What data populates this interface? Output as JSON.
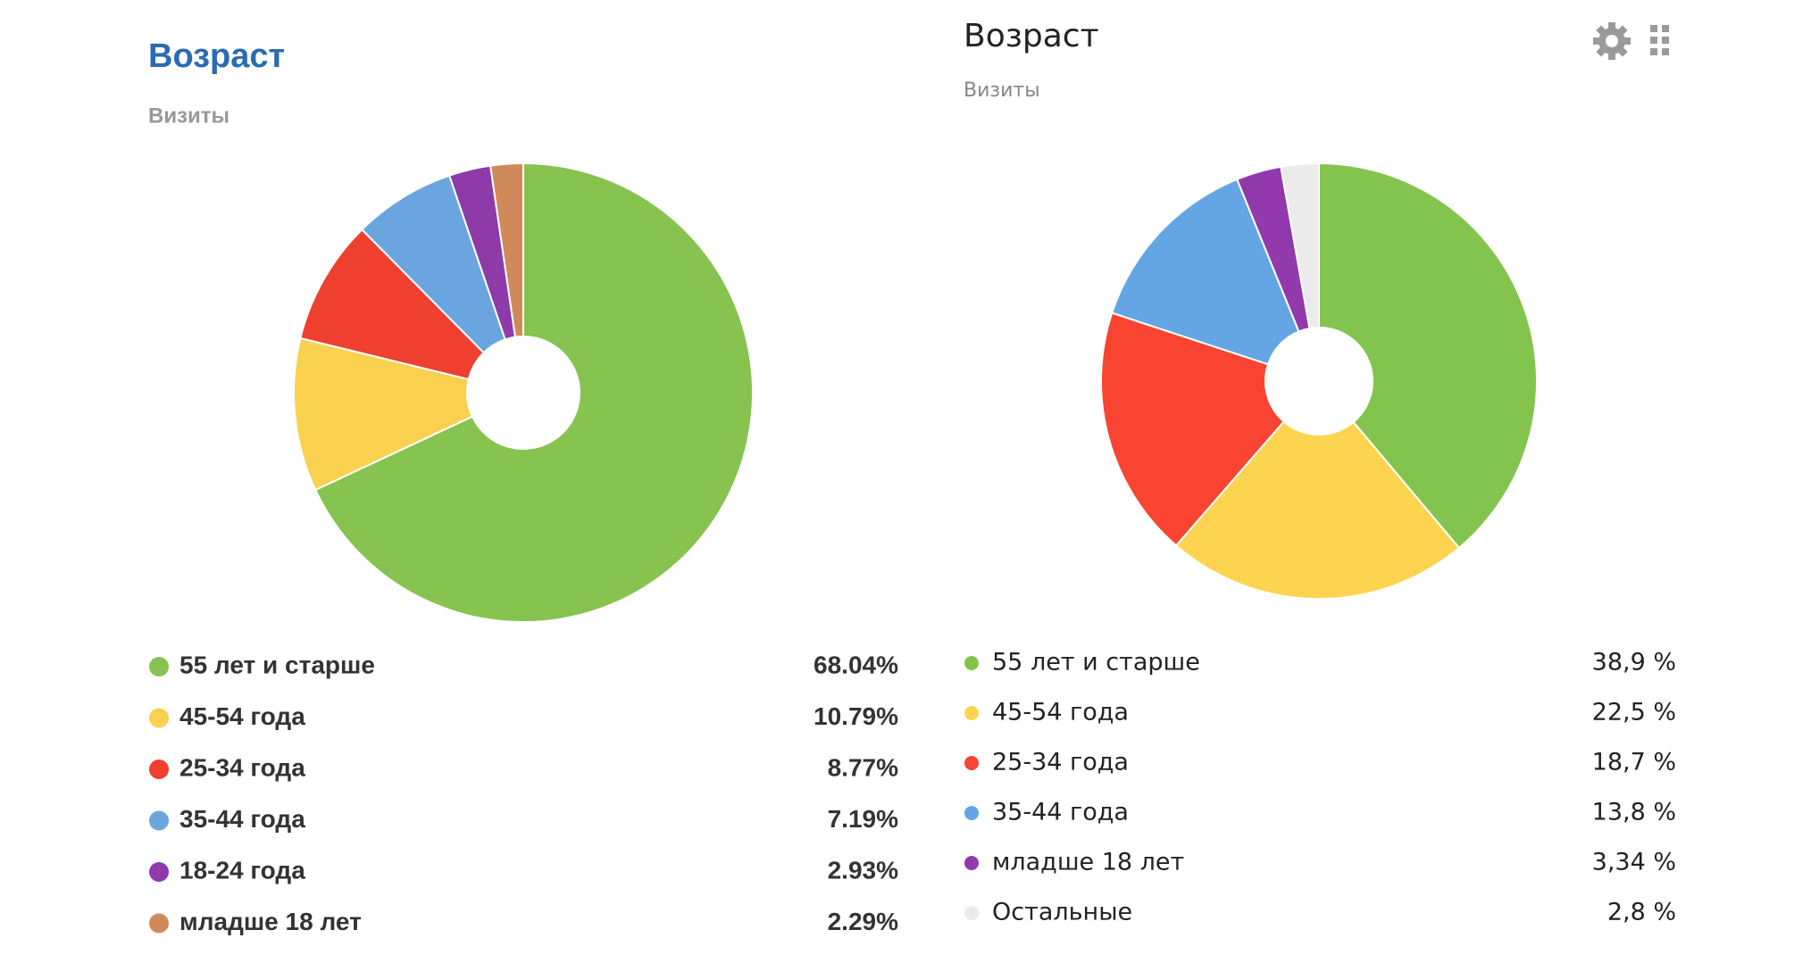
{
  "chart_data": [
    {
      "type": "pie",
      "title": "Возраст",
      "subtitle": "Визиты",
      "categories": [
        "55 лет и старше",
        "45-54 года",
        "25-34 года",
        "35-44 года",
        "18-24 года",
        "младше 18 лет"
      ],
      "values": [
        68.04,
        10.79,
        8.77,
        7.19,
        2.93,
        2.29
      ],
      "value_labels": [
        "68.04%",
        "10.79%",
        "8.77%",
        "7.19%",
        "2.93%",
        "2.29%"
      ],
      "colors": [
        "#86c34f",
        "#f9d14f",
        "#ee3f2f",
        "#6aa5e0",
        "#8e3aa8",
        "#d08a5a"
      ]
    },
    {
      "type": "pie",
      "title": "Возраст",
      "subtitle": "Визиты",
      "categories": [
        "55 лет и старше",
        "45-54 года",
        "25-34 года",
        "35-44 года",
        "младше 18 лет",
        "Остальные"
      ],
      "values": [
        38.9,
        22.5,
        18.7,
        13.8,
        3.34,
        2.8
      ],
      "value_labels": [
        "38,9 %",
        "22,5 %",
        "18,7 %",
        "13,8 %",
        "3,34 %",
        "2,8 %"
      ],
      "colors": [
        "#83c44e",
        "#fdd44f",
        "#f84431",
        "#64a6e3",
        "#9239ad",
        "#ebebeb"
      ]
    }
  ]
}
